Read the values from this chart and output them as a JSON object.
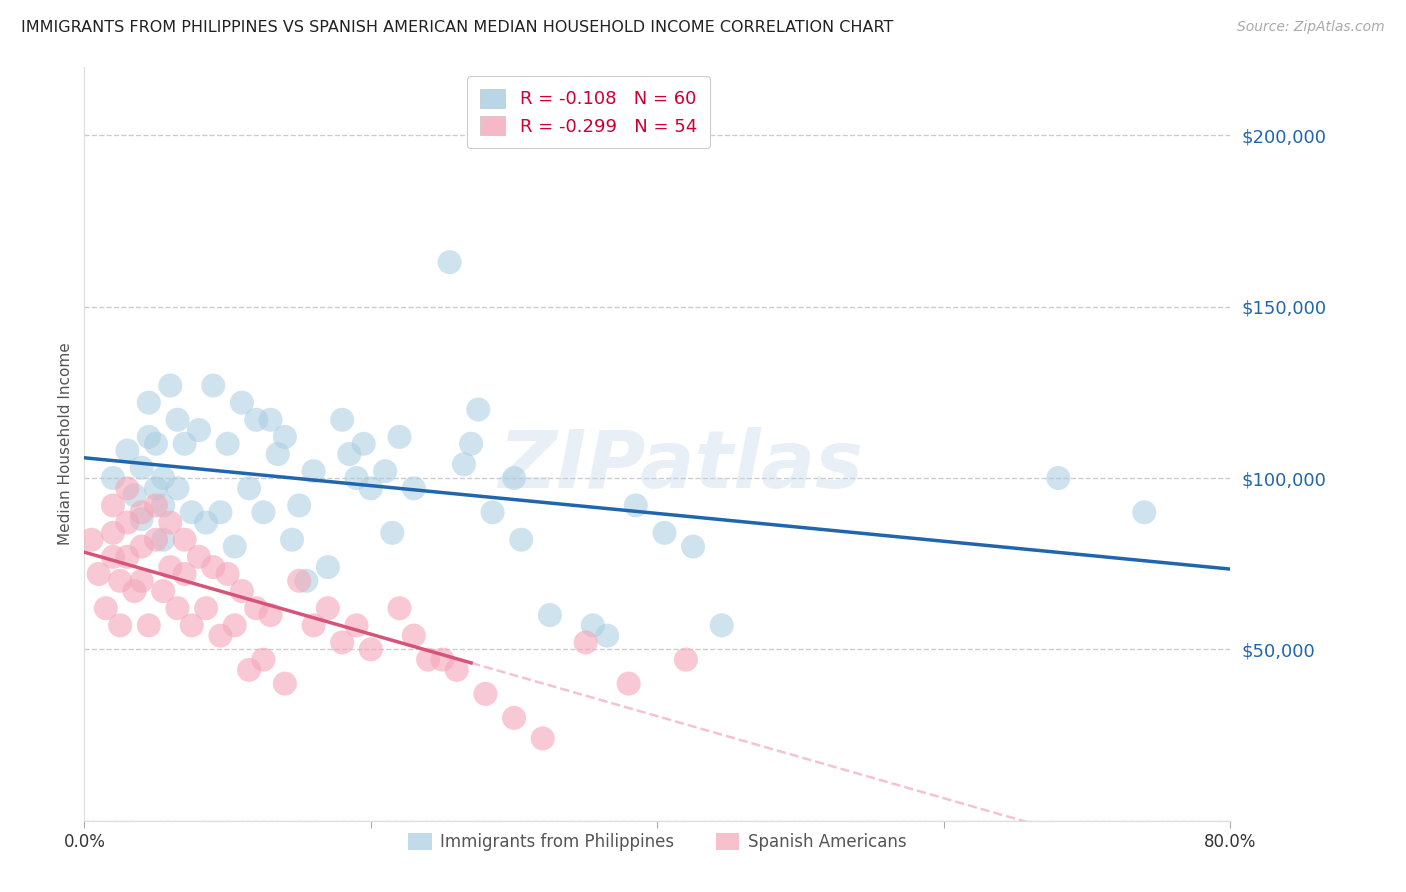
{
  "title": "IMMIGRANTS FROM PHILIPPINES VS SPANISH AMERICAN MEDIAN HOUSEHOLD INCOME CORRELATION CHART",
  "source": "Source: ZipAtlas.com",
  "ylabel": "Median Household Income",
  "xlim": [
    0.0,
    0.8
  ],
  "ylim": [
    0,
    220000
  ],
  "yticks": [
    0,
    50000,
    100000,
    150000,
    200000
  ],
  "xticks": [
    0.0,
    0.2,
    0.4,
    0.6,
    0.8
  ],
  "background_color": "#ffffff",
  "blue_color": "#a8cce0",
  "blue_line_color": "#2166ac",
  "pink_color": "#f4a6b8",
  "pink_line_color": "#d6537a",
  "pink_dash_color": "#f0b0c0",
  "watermark": "ZIPatlas",
  "legend_r1": "-0.108",
  "legend_n1": "60",
  "legend_r2": "-0.299",
  "legend_n2": "54",
  "legend_label1": "Immigrants from Philippines",
  "legend_label2": "Spanish Americans",
  "blue_x": [
    0.02,
    0.03,
    0.035,
    0.04,
    0.04,
    0.045,
    0.045,
    0.05,
    0.05,
    0.055,
    0.055,
    0.055,
    0.06,
    0.065,
    0.065,
    0.07,
    0.075,
    0.08,
    0.085,
    0.09,
    0.095,
    0.1,
    0.105,
    0.11,
    0.115,
    0.12,
    0.125,
    0.13,
    0.135,
    0.14,
    0.145,
    0.15,
    0.155,
    0.16,
    0.17,
    0.18,
    0.185,
    0.19,
    0.195,
    0.2,
    0.21,
    0.215,
    0.22,
    0.23,
    0.255,
    0.265,
    0.27,
    0.275,
    0.285,
    0.3,
    0.305,
    0.325,
    0.355,
    0.365,
    0.385,
    0.405,
    0.425,
    0.445,
    0.68,
    0.74
  ],
  "blue_y": [
    100000,
    108000,
    95000,
    103000,
    88000,
    112000,
    122000,
    97000,
    110000,
    100000,
    92000,
    82000,
    127000,
    117000,
    97000,
    110000,
    90000,
    114000,
    87000,
    127000,
    90000,
    110000,
    80000,
    122000,
    97000,
    117000,
    90000,
    117000,
    107000,
    112000,
    82000,
    92000,
    70000,
    102000,
    74000,
    117000,
    107000,
    100000,
    110000,
    97000,
    102000,
    84000,
    112000,
    97000,
    163000,
    104000,
    110000,
    120000,
    90000,
    100000,
    82000,
    60000,
    57000,
    54000,
    92000,
    84000,
    80000,
    57000,
    100000,
    90000
  ],
  "pink_x": [
    0.005,
    0.01,
    0.015,
    0.02,
    0.02,
    0.02,
    0.025,
    0.025,
    0.03,
    0.03,
    0.03,
    0.035,
    0.04,
    0.04,
    0.04,
    0.045,
    0.05,
    0.05,
    0.055,
    0.06,
    0.06,
    0.065,
    0.07,
    0.07,
    0.075,
    0.08,
    0.085,
    0.09,
    0.095,
    0.1,
    0.105,
    0.11,
    0.115,
    0.12,
    0.125,
    0.13,
    0.14,
    0.15,
    0.16,
    0.17,
    0.18,
    0.19,
    0.2,
    0.22,
    0.23,
    0.24,
    0.25,
    0.26,
    0.28,
    0.3,
    0.32,
    0.35,
    0.38,
    0.42
  ],
  "pink_y": [
    82000,
    72000,
    62000,
    92000,
    84000,
    77000,
    70000,
    57000,
    97000,
    87000,
    77000,
    67000,
    90000,
    80000,
    70000,
    57000,
    92000,
    82000,
    67000,
    87000,
    74000,
    62000,
    82000,
    72000,
    57000,
    77000,
    62000,
    74000,
    54000,
    72000,
    57000,
    67000,
    44000,
    62000,
    47000,
    60000,
    40000,
    70000,
    57000,
    62000,
    52000,
    57000,
    50000,
    62000,
    54000,
    47000,
    47000,
    44000,
    37000,
    30000,
    24000,
    52000,
    40000,
    47000
  ]
}
